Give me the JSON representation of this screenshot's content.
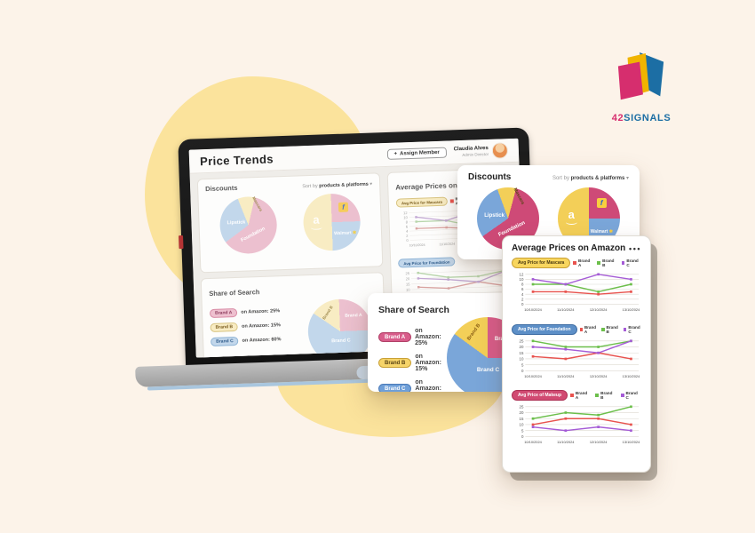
{
  "logo": {
    "num": "42",
    "name": "SIGNALS"
  },
  "colors": {
    "background": "#fcf3e9",
    "blob_yellow": "#fbe39c",
    "pink": "#ce4a77",
    "yellow": "#f3cf58",
    "blue": "#7aa6d9",
    "brand_a_red": "#e8534e",
    "brand_b_green": "#6cbf4b",
    "brand_c_purple": "#a55cd6",
    "logo_pink": "#d62e6e",
    "logo_yellow": "#f0b400",
    "logo_blue": "#1c6ea4"
  },
  "laptop": {
    "header": {
      "title": "Price Trends",
      "assign_plus": "+",
      "assign_label": "Assign Member",
      "user_name": "Claudia Alves",
      "user_role": "Admin Director"
    },
    "avg_title": "Average Prices on"
  },
  "cards": {
    "discounts": {
      "title": "Discounts",
      "sort_label": "Sort by ",
      "sort_value": "products & platforms",
      "caret": " ▾"
    },
    "share": {
      "title": "Share of Search",
      "rows": [
        {
          "brand": "Brand A",
          "text": "on Amazon: 25%"
        },
        {
          "brand": "Brand B",
          "text": "on Amazon: 15%"
        },
        {
          "brand": "Brand C",
          "text": "on Amazon: 60%"
        }
      ]
    },
    "avg": {
      "title": "Average Prices on Amazon",
      "menu": "•••"
    }
  },
  "chart_data": [
    {
      "id": "discounts-products-pie",
      "type": "pie",
      "labels": [
        "Foundation",
        "Lipstick",
        "Mascara"
      ],
      "values_pct": [
        61,
        29,
        10
      ],
      "segments": [
        [
          "#f3cf58",
          0,
          15
        ],
        [
          "#ce4a77",
          15,
          235
        ],
        [
          "#7aa6d9",
          235,
          340
        ],
        [
          "#f3cf58",
          340,
          360
        ]
      ]
    },
    {
      "id": "discounts-platforms-pie",
      "type": "pie",
      "labels": [
        "Amazon",
        "Flipkart",
        "Walmart"
      ],
      "values_pct": [
        50,
        25,
        25
      ],
      "walmart_spark": "✱",
      "flipkart_f": "f",
      "amazon_a": "a",
      "segments": [
        [
          "#ce4a77",
          0,
          90
        ],
        [
          "#7aa6d9",
          90,
          180
        ],
        [
          "#f3cf58",
          180,
          360
        ]
      ]
    },
    {
      "id": "share-of-search-pie",
      "type": "pie",
      "labels": [
        "Brand A",
        "Brand B",
        "Brand C"
      ],
      "values_pct": [
        25,
        15,
        60
      ],
      "segments": [
        [
          "#d85c8a",
          0,
          90
        ],
        [
          "#7aa6d9",
          90,
          306
        ],
        [
          "#f3cf58",
          306,
          360
        ]
      ]
    },
    {
      "id": "avg-price-mascara",
      "type": "line",
      "title": "Avg Price for Mascara",
      "x": [
        "10/10/2024",
        "11/10/2024",
        "12/10/2024",
        "13/10/2024"
      ],
      "ylim": [
        0,
        12
      ],
      "yticks": [
        0,
        2,
        4,
        6,
        8,
        10,
        12
      ],
      "series": [
        {
          "name": "Brand A",
          "color": "#e8534e",
          "values": [
            5,
            5,
            4,
            5
          ]
        },
        {
          "name": "Brand B",
          "color": "#6cbf4b",
          "values": [
            8,
            8,
            5,
            8
          ]
        },
        {
          "name": "Brand C",
          "color": "#a55cd6",
          "values": [
            10,
            8,
            12,
            10
          ]
        }
      ]
    },
    {
      "id": "avg-price-foundation",
      "type": "line",
      "title": "Avg Price for Foundation",
      "x": [
        "10/10/2024",
        "11/10/2024",
        "12/10/2024",
        "13/10/2024"
      ],
      "ylim": [
        0,
        25
      ],
      "yticks": [
        0,
        5,
        10,
        15,
        20,
        25
      ],
      "series": [
        {
          "name": "Brand A",
          "color": "#e8534e",
          "values": [
            12,
            10,
            15,
            10
          ]
        },
        {
          "name": "Brand B",
          "color": "#6cbf4b",
          "values": [
            25,
            20,
            20,
            25
          ]
        },
        {
          "name": "Brand C",
          "color": "#a55cd6",
          "values": [
            20,
            18,
            15,
            25
          ]
        }
      ]
    },
    {
      "id": "avg-price-makeup",
      "type": "line",
      "title": "Avg Price of Makeup",
      "x": [
        "10/10/2024",
        "11/10/2024",
        "12/10/2024",
        "13/10/2024"
      ],
      "ylim": [
        0,
        25
      ],
      "yticks": [
        0,
        5,
        10,
        15,
        20,
        25
      ],
      "series": [
        {
          "name": "Brand A",
          "color": "#e8534e",
          "values": [
            10,
            15,
            15,
            10
          ]
        },
        {
          "name": "Brand B",
          "color": "#6cbf4b",
          "values": [
            15,
            20,
            18,
            25
          ]
        },
        {
          "name": "Brand C",
          "color": "#a55cd6",
          "values": [
            8,
            5,
            8,
            5
          ]
        }
      ]
    }
  ],
  "pies_muted": {
    "products": {
      "segments": [
        [
          "#f8ecc3",
          0,
          15
        ],
        [
          "#ecc0cf",
          15,
          235
        ],
        [
          "#c2d7eb",
          235,
          340
        ],
        [
          "#f8ecc3",
          340,
          360
        ]
      ]
    },
    "platforms": {
      "segments": [
        [
          "#ecc0cf",
          0,
          90
        ],
        [
          "#c2d7eb",
          90,
          180
        ],
        [
          "#f8ecc3",
          180,
          360
        ]
      ]
    },
    "share": {
      "segments": [
        [
          "#ecc0cf",
          0,
          90
        ],
        [
          "#c2d7eb",
          90,
          306
        ],
        [
          "#f8ecc3",
          306,
          360
        ]
      ]
    }
  }
}
